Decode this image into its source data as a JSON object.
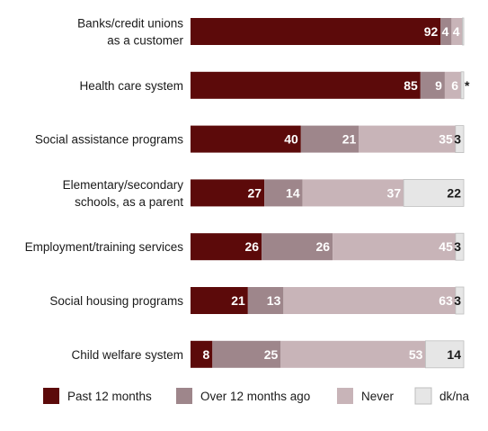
{
  "chart_data": {
    "type": "bar",
    "orientation": "horizontal",
    "stacked": true,
    "title": "",
    "xlabel": "",
    "ylabel": "",
    "xlim": [
      0,
      100
    ],
    "grid": false,
    "legend_position": "bottom",
    "categories": [
      [
        "Banks/credit unions",
        "as a customer"
      ],
      [
        "Health care system"
      ],
      [
        "Social assistance programs"
      ],
      [
        "Elementary/secondary",
        "schools, as a parent"
      ],
      [
        "Employment/training services"
      ],
      [
        "Social housing programs"
      ],
      [
        "Child welfare system"
      ]
    ],
    "series": [
      {
        "name": "Past 12 months",
        "color": "#5c0a0a",
        "label_color": "#ffffff",
        "values": [
          92,
          85,
          40,
          27,
          26,
          21,
          8
        ],
        "labels": [
          "92",
          "85",
          "40",
          "27",
          "26",
          "21",
          "8"
        ]
      },
      {
        "name": "Over 12 months ago",
        "color": "#9e868b",
        "label_color": "#ffffff",
        "values": [
          4,
          9,
          21,
          14,
          26,
          13,
          25
        ],
        "labels": [
          "4",
          "9",
          "21",
          "14",
          "26",
          "13",
          "25"
        ]
      },
      {
        "name": "Never",
        "color": "#c8b4b8",
        "label_color": "#ffffff",
        "values": [
          4,
          6,
          35,
          37,
          45,
          63,
          53
        ],
        "labels": [
          "4",
          "6",
          "35",
          "37",
          "45",
          "63",
          "53"
        ]
      },
      {
        "name": "dk/na",
        "color": "#e6e6e6",
        "label_color": "#1a1a1a",
        "values": [
          0.5,
          1,
          3,
          22,
          3,
          3,
          14
        ],
        "labels": [
          "",
          "*",
          "3",
          "22",
          "3",
          "3",
          "14"
        ]
      }
    ]
  }
}
